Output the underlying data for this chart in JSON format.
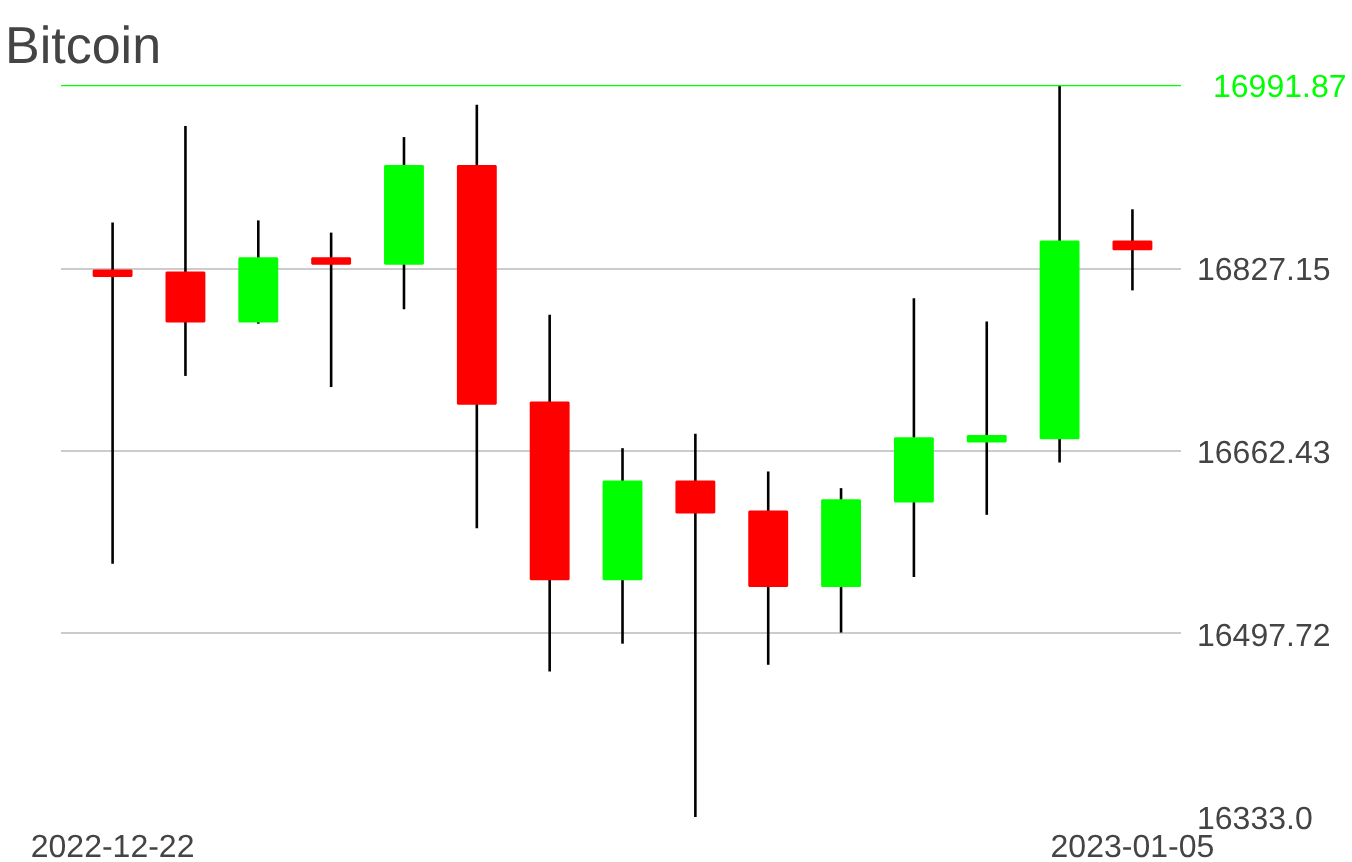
{
  "chart_data": {
    "type": "candlestick",
    "title": "Bitcoin",
    "x": [
      "2022-12-22",
      "2022-12-23",
      "2022-12-24",
      "2022-12-25",
      "2022-12-26",
      "2022-12-27",
      "2022-12-28",
      "2022-12-29",
      "2022-12-30",
      "2022-12-31",
      "2023-01-01",
      "2023-01-02",
      "2023-01-03",
      "2023-01-04",
      "2023-01-05"
    ],
    "ohlc": [
      [
        16825,
        16868,
        16561,
        16820
      ],
      [
        16823,
        16955,
        16730,
        16779
      ],
      [
        16779,
        16870,
        16777,
        16836
      ],
      [
        16836,
        16859,
        16720,
        16831
      ],
      [
        16831,
        16945,
        16790,
        16919
      ],
      [
        16919,
        16974,
        16593,
        16705
      ],
      [
        16706,
        16785,
        16464,
        16547
      ],
      [
        16547,
        16665,
        16489,
        16635
      ],
      [
        16635,
        16678,
        16333,
        16607
      ],
      [
        16608,
        16644,
        16470,
        16541
      ],
      [
        16541,
        16629,
        16499,
        16618
      ],
      [
        16617,
        16800,
        16549,
        16674
      ],
      [
        16671,
        16779,
        16605,
        16676
      ],
      [
        16674,
        16991.87,
        16652,
        16851
      ],
      [
        16851,
        16880,
        16807,
        16844
      ]
    ],
    "colors": [
      "#ff0000",
      "#ff0000",
      "#00ff00",
      "#ff0000",
      "#00ff00",
      "#ff0000",
      "#ff0000",
      "#00ff00",
      "#ff0000",
      "#ff0000",
      "#00ff00",
      "#00ff00",
      "#00ff00",
      "#00ff00",
      "#ff0000"
    ],
    "xlim": [
      "2022-12-21T07:00",
      "2023-01-05T16:00"
    ],
    "xticks": [
      "2022-12-22",
      "2023-01-05"
    ],
    "ylim": [
      16333,
      16991.87
    ],
    "yticks": [
      {
        "value": 16333,
        "label": "16333.0"
      },
      16497.72,
      16662.43,
      16827.15
    ],
    "ref_lines": [
      {
        "axis": "y",
        "value": 16991.87,
        "label": "16991.87",
        "color": "#00ff00"
      }
    ],
    "grid": "y"
  }
}
